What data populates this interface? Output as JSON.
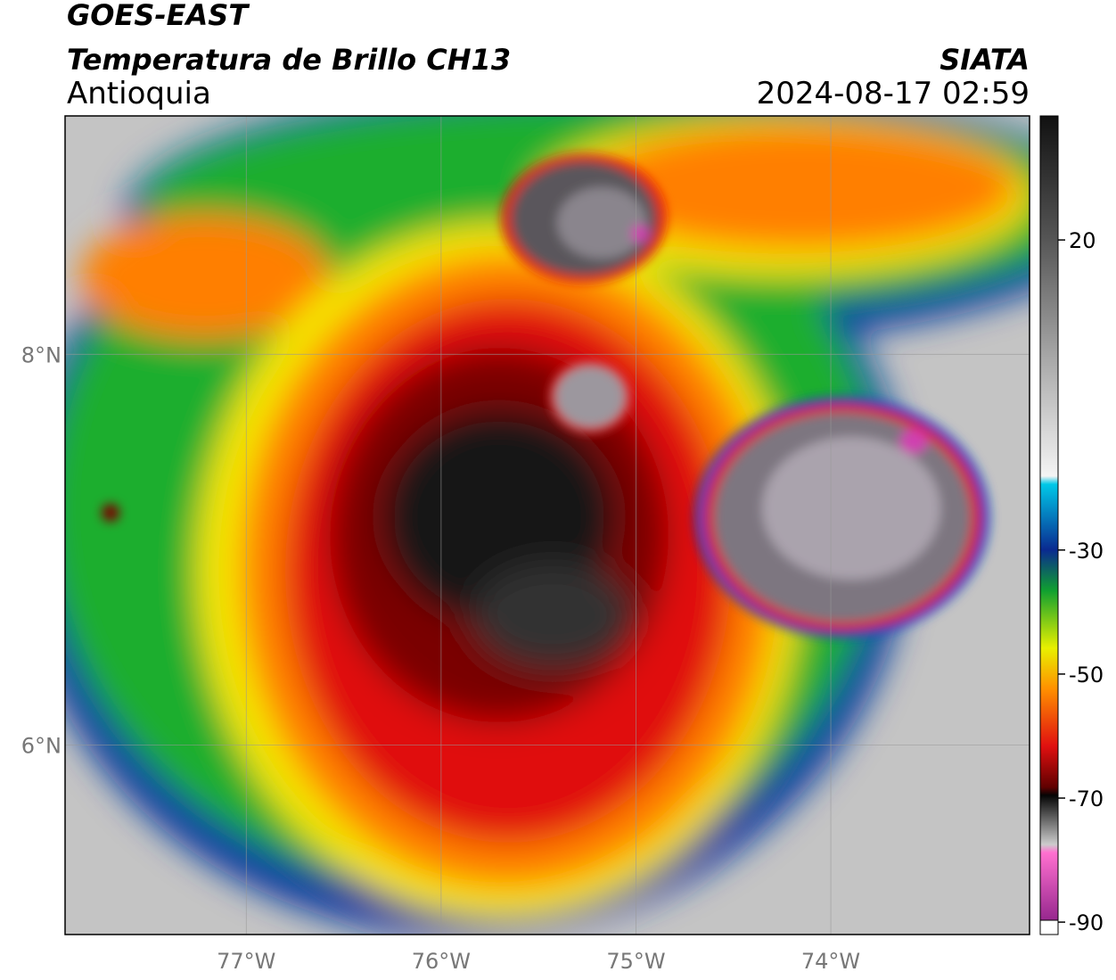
{
  "header": {
    "title": "GOES-EAST",
    "subtitle": "Temperatura de Brillo CH13",
    "region": "Antioquia",
    "source": "SIATA",
    "datetime": "2024-08-17 02:59"
  },
  "map": {
    "xlim": [
      -77.93,
      -72.98
    ],
    "ylim": [
      5.03,
      9.22
    ],
    "xticks": [
      {
        "value": -77,
        "label": "77°W"
      },
      {
        "value": -76,
        "label": "76°W"
      },
      {
        "value": -75,
        "label": "75°W"
      },
      {
        "value": -74,
        "label": "74°W"
      }
    ],
    "yticks": [
      {
        "value": 8,
        "label": "8°N"
      },
      {
        "value": 6,
        "label": "6°N"
      }
    ],
    "grid": true
  },
  "colorbar": {
    "lim": [
      -92,
      40
    ],
    "ticks": [
      20,
      -30,
      -50,
      -70,
      -90
    ]
  }
}
